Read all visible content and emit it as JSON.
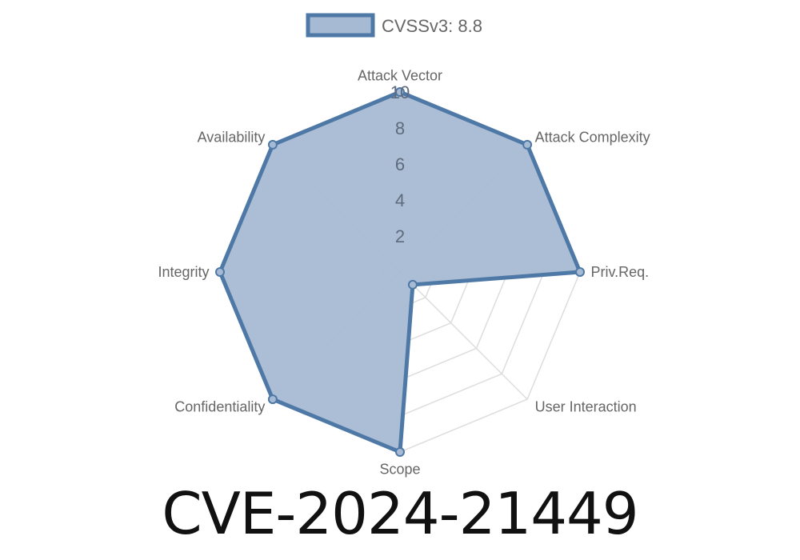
{
  "chart_data": {
    "type": "radar",
    "axes": [
      "Attack Vector",
      "Attack Complexity",
      "Priv.Req.",
      "User Interaction",
      "Scope",
      "Confidentiality",
      "Integrity",
      "Availability"
    ],
    "series": [
      {
        "name": "CVSSv3: 8.8",
        "values": [
          10,
          10,
          10,
          1,
          10,
          10,
          10,
          10
        ]
      }
    ],
    "rlim": [
      0,
      10
    ],
    "ticks": [
      "2",
      "4",
      "6",
      "8",
      "10"
    ],
    "legend": "top",
    "grid": true,
    "colors": {
      "fill": "#a7bad3",
      "stroke": "#4e78a6",
      "grid": "#dddddd",
      "label": "#666666"
    }
  },
  "title": "CVE-2024-21449"
}
